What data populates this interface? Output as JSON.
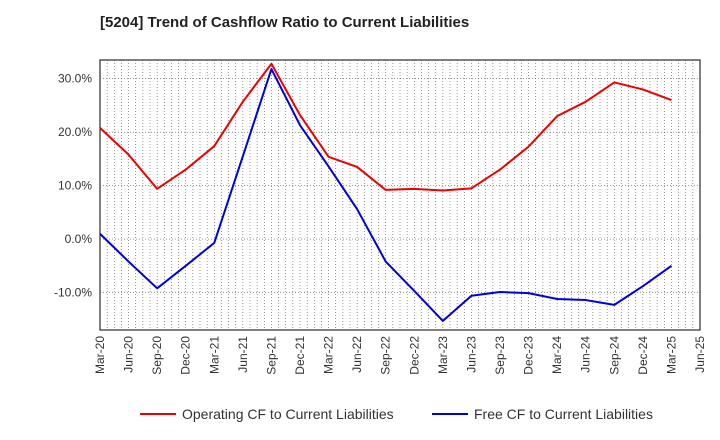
{
  "chart_data": {
    "type": "line",
    "title": "[5204]  Trend of Cashflow Ratio to Current Liabilities",
    "xlabel": "",
    "ylabel": "",
    "x": [
      "Mar-20",
      "Jun-20",
      "Sep-20",
      "Dec-20",
      "Mar-21",
      "Jun-21",
      "Sep-21",
      "Dec-21",
      "Mar-22",
      "Jun-22",
      "Sep-22",
      "Dec-22",
      "Mar-23",
      "Jun-23",
      "Sep-23",
      "Dec-23",
      "Mar-24",
      "Jun-24",
      "Sep-24",
      "Dec-24",
      "Mar-25",
      "Jun-25"
    ],
    "series": [
      {
        "name": "Operating CF to Current Liabilities",
        "color": "#ee0000",
        "values": [
          20.8,
          15.8,
          9.4,
          13.0,
          17.4,
          25.7,
          32.8,
          23.2,
          15.4,
          13.5,
          9.2,
          9.4,
          9.1,
          9.5,
          13.0,
          17.3,
          23.0,
          25.7,
          29.3,
          28.0,
          26.0,
          null
        ]
      },
      {
        "name": "Free CF to Current Liabilities",
        "color": "#0000dd",
        "values": [
          1.0,
          -4.2,
          -9.2,
          -5.0,
          -0.7,
          15.5,
          31.8,
          21.3,
          13.6,
          5.6,
          -4.2,
          -9.7,
          -15.3,
          -10.6,
          -9.9,
          -10.1,
          -11.2,
          -11.4,
          -12.3,
          -8.8,
          -5.0,
          null
        ]
      }
    ],
    "yticks": [
      30,
      20,
      10,
      0,
      -10
    ],
    "ytick_labels": [
      "30.0%",
      "20.0%",
      "10.0%",
      "0.0%",
      "-10.0%"
    ],
    "ylim": [
      -17,
      33.5
    ],
    "grid": true,
    "legend": "bottom"
  }
}
